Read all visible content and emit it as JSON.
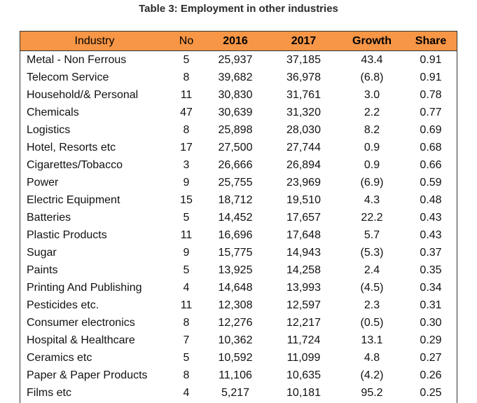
{
  "caption": "Table 3: Employment in other industries",
  "table": {
    "headers": [
      "Industry",
      "No",
      "2016",
      "2017",
      "Growth",
      "Share"
    ],
    "rows": [
      [
        "Metal - Non Ferrous",
        "5",
        "25,937",
        "37,185",
        "43.4",
        "0.91"
      ],
      [
        "Telecom  Service",
        "8",
        "39,682",
        "36,978",
        "(6.8)",
        "0.91"
      ],
      [
        "Household/& Personal",
        "11",
        "30,830",
        "31,761",
        "3.0",
        "0.78"
      ],
      [
        "Chemicals",
        "47",
        "30,639",
        "31,320",
        "2.2",
        "0.77"
      ],
      [
        "Logistics",
        "8",
        "25,898",
        "28,030",
        "8.2",
        "0.69"
      ],
      [
        "Hotel, Resorts etc",
        "17",
        "27,500",
        "27,744",
        "0.9",
        "0.68"
      ],
      [
        "Cigarettes/Tobacco",
        "3",
        "26,666",
        "26,894",
        "0.9",
        "0.66"
      ],
      [
        "Power",
        "9",
        "25,755",
        "23,969",
        "(6.9)",
        "0.59"
      ],
      [
        "Electric Equipment",
        "15",
        "18,712",
        "19,510",
        "4.3",
        "0.48"
      ],
      [
        "Batteries",
        "5",
        "14,452",
        "17,657",
        "22.2",
        "0.43"
      ],
      [
        "Plastic Products",
        "11",
        "16,696",
        "17,648",
        "5.7",
        "0.43"
      ],
      [
        "Sugar",
        "9",
        "15,775",
        "14,943",
        "(5.3)",
        "0.37"
      ],
      [
        "Paints",
        "5",
        "13,925",
        "14,258",
        "2.4",
        "0.35"
      ],
      [
        "Printing And Publishing",
        "4",
        "14,648",
        "13,993",
        "(4.5)",
        "0.34"
      ],
      [
        "Pesticides etc.",
        "11",
        "12,308",
        "12,597",
        "2.3",
        "0.31"
      ],
      [
        "Consumer electronics",
        "8",
        "12,276",
        "12,217",
        "(0.5)",
        "0.30"
      ],
      [
        "Hospital & Healthcare",
        "7",
        "10,362",
        "11,724",
        "13.1",
        "0.29"
      ],
      [
        "Ceramics etc",
        "5",
        "10,592",
        "11,099",
        "4.8",
        "0.27"
      ],
      [
        "Paper & Paper Products",
        "8",
        "11,106",
        "10,635",
        "(4.2)",
        "0.26"
      ],
      [
        "Films etc",
        "4",
        "5,217",
        "10,181",
        "95.2",
        "0.25"
      ]
    ]
  },
  "colors": {
    "header_bg": "#f79646",
    "border": "#333333"
  }
}
